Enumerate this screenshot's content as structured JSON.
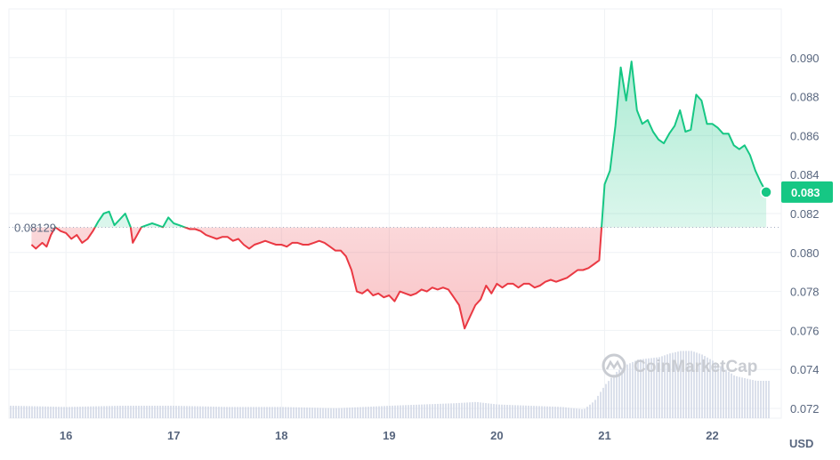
{
  "chart_data": {
    "type": "line",
    "title": "",
    "xlabel": "",
    "ylabel": "",
    "unit": "USD",
    "x_ticks": [
      "16",
      "17",
      "18",
      "19",
      "20",
      "21",
      "22"
    ],
    "y_ticks": [
      "0.072",
      "0.074",
      "0.076",
      "0.078",
      "0.080",
      "0.082",
      "0.084",
      "0.086",
      "0.088",
      "0.090"
    ],
    "ylim": [
      0.0715,
      0.0925
    ],
    "xlim_days": [
      15.47,
      22.64
    ],
    "reference_price": 0.08129,
    "reference_label": "0.08129",
    "current_price": 0.0826,
    "current_label": "0.083",
    "grid": true,
    "watermark": "CoinMarketCap",
    "colors": {
      "up": "#16c784",
      "down": "#ea3943",
      "volume": "#cfd6e4",
      "grid": "#eff2f5",
      "axis_text": "#58667e"
    },
    "price_series": {
      "x_day": [
        15.68,
        15.7,
        15.72,
        15.74,
        15.78,
        15.82,
        15.86,
        15.9,
        15.95,
        16.0,
        16.05,
        16.1,
        16.15,
        16.2,
        16.25,
        16.3,
        16.35,
        16.4,
        16.45,
        16.5,
        16.55,
        16.6,
        16.62,
        16.65,
        16.7,
        16.75,
        16.8,
        16.85,
        16.9,
        16.95,
        17.0,
        17.05,
        17.1,
        17.15,
        17.2,
        17.25,
        17.3,
        17.35,
        17.4,
        17.45,
        17.5,
        17.55,
        17.6,
        17.65,
        17.7,
        17.75,
        17.8,
        17.85,
        17.9,
        17.95,
        18.0,
        18.05,
        18.1,
        18.15,
        18.2,
        18.25,
        18.3,
        18.35,
        18.4,
        18.45,
        18.5,
        18.55,
        18.6,
        18.65,
        18.7,
        18.75,
        18.8,
        18.85,
        18.9,
        18.95,
        19.0,
        19.05,
        19.1,
        19.15,
        19.2,
        19.25,
        19.3,
        19.35,
        19.4,
        19.45,
        19.5,
        19.55,
        19.6,
        19.65,
        19.7,
        19.75,
        19.8,
        19.85,
        19.9,
        19.95,
        20.0,
        20.05,
        20.1,
        20.15,
        20.2,
        20.25,
        20.3,
        20.35,
        20.4,
        20.45,
        20.5,
        20.55,
        20.6,
        20.65,
        20.7,
        20.75,
        20.8,
        20.85,
        20.9,
        20.95,
        21.0,
        21.05,
        21.1,
        21.15,
        21.2,
        21.25,
        21.3,
        21.35,
        21.4,
        21.45,
        21.5,
        21.55,
        21.6,
        21.65,
        21.7,
        21.75,
        21.8,
        21.85,
        21.9,
        21.95,
        22.0,
        22.05,
        22.1,
        22.15,
        22.2,
        22.25,
        22.3,
        22.35,
        22.4,
        22.45,
        22.5
      ],
      "price": [
        0.0804,
        0.0803,
        0.0802,
        0.0803,
        0.0805,
        0.0803,
        0.0809,
        0.0813,
        0.0811,
        0.081,
        0.0807,
        0.0809,
        0.0805,
        0.0807,
        0.0811,
        0.0816,
        0.082,
        0.0821,
        0.0814,
        0.0817,
        0.082,
        0.0813,
        0.0805,
        0.0808,
        0.0813,
        0.0814,
        0.0815,
        0.0814,
        0.0813,
        0.0818,
        0.0815,
        0.0814,
        0.0813,
        0.0812,
        0.0812,
        0.0811,
        0.0809,
        0.0808,
        0.0807,
        0.0808,
        0.0808,
        0.0806,
        0.0807,
        0.0804,
        0.0802,
        0.0804,
        0.0805,
        0.0806,
        0.0805,
        0.0804,
        0.0804,
        0.0803,
        0.0805,
        0.0805,
        0.0804,
        0.0804,
        0.0805,
        0.0806,
        0.0805,
        0.0803,
        0.0801,
        0.0801,
        0.0798,
        0.0791,
        0.078,
        0.0779,
        0.0781,
        0.0778,
        0.0779,
        0.0777,
        0.0778,
        0.0775,
        0.078,
        0.0779,
        0.0778,
        0.0779,
        0.0781,
        0.078,
        0.0782,
        0.0781,
        0.0782,
        0.0781,
        0.0777,
        0.0773,
        0.0761,
        0.0767,
        0.0773,
        0.0776,
        0.0783,
        0.0779,
        0.0784,
        0.0782,
        0.0784,
        0.0784,
        0.0782,
        0.0784,
        0.0784,
        0.0782,
        0.0783,
        0.0785,
        0.0786,
        0.0785,
        0.0786,
        0.0787,
        0.0789,
        0.0791,
        0.0791,
        0.0792,
        0.0794,
        0.0796,
        0.0835,
        0.0842,
        0.0865,
        0.0895,
        0.0878,
        0.0898,
        0.0873,
        0.0866,
        0.0868,
        0.0862,
        0.0858,
        0.0856,
        0.0861,
        0.0865,
        0.0873,
        0.0862,
        0.0863,
        0.0881,
        0.0878,
        0.0866,
        0.0866,
        0.0864,
        0.0861,
        0.0861,
        0.0855,
        0.0853,
        0.0855,
        0.085,
        0.0842,
        0.0836,
        0.0831
      ]
    },
    "volume_series": {
      "x_day": [
        15.5,
        16.0,
        16.5,
        17.0,
        17.5,
        18.0,
        18.5,
        19.0,
        19.3,
        19.6,
        19.8,
        20.0,
        20.3,
        20.6,
        20.8,
        20.9,
        21.0,
        21.1,
        21.2,
        21.3,
        21.4,
        21.5,
        21.6,
        21.7,
        21.8,
        21.9,
        22.0,
        22.1,
        22.2,
        22.3,
        22.4,
        22.5
      ],
      "relative_height": [
        0.1,
        0.09,
        0.1,
        0.1,
        0.09,
        0.09,
        0.08,
        0.1,
        0.11,
        0.12,
        0.13,
        0.11,
        0.1,
        0.09,
        0.07,
        0.14,
        0.27,
        0.37,
        0.43,
        0.47,
        0.48,
        0.49,
        0.52,
        0.54,
        0.54,
        0.51,
        0.46,
        0.4,
        0.34,
        0.32,
        0.3,
        0.3
      ]
    }
  }
}
